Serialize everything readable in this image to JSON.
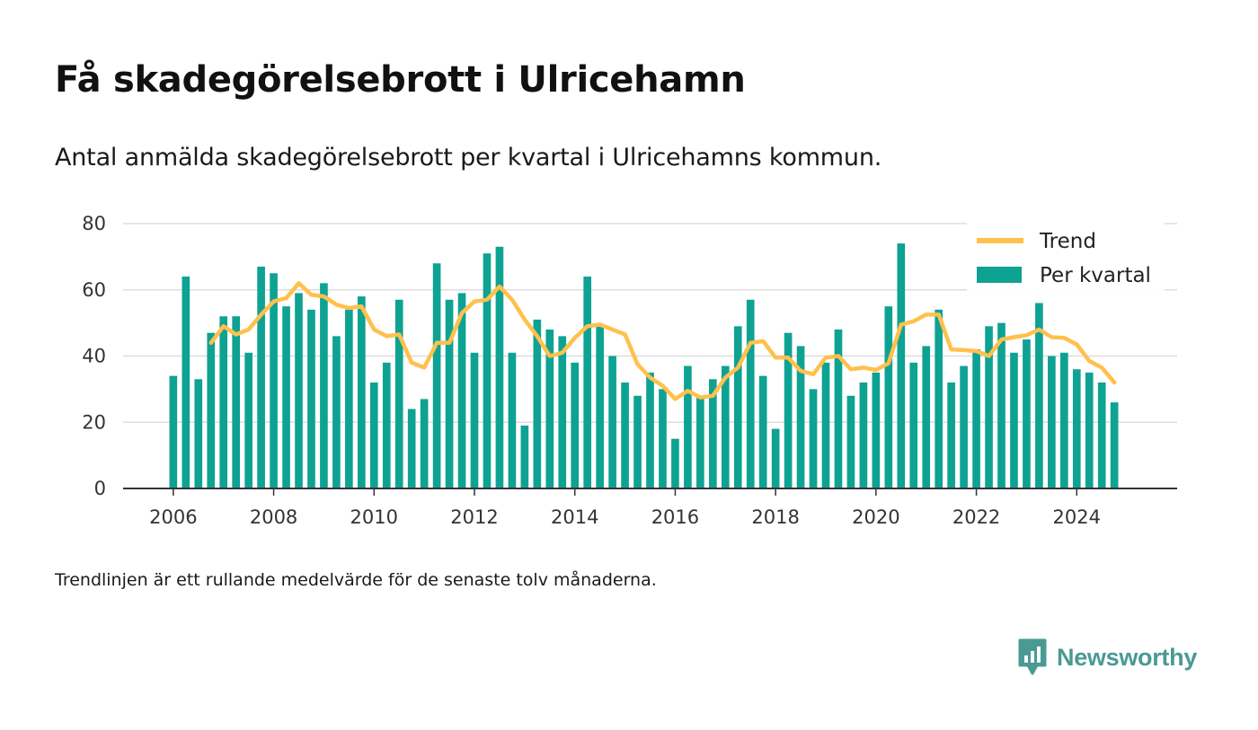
{
  "header": {
    "title": "Få skadegörelsebrott i Ulricehamn",
    "subtitle": "Antal anmälda skadegörelsebrott per kvartal i Ulricehamns kommun."
  },
  "footnote": "Trendlinjen är ett rullande medelvärde för de senaste tolv månaderna.",
  "brand": {
    "name": "Newsworthy",
    "icon": "newsworthy-logo-icon",
    "color": "#4a9a93"
  },
  "chart_data": {
    "type": "bar",
    "x_unit": "quarter",
    "first_period": "2006 Q1",
    "ylim": [
      0,
      80
    ],
    "yticks": [
      0,
      20,
      40,
      60,
      80
    ],
    "xlim": [
      2005,
      2026
    ],
    "xticks": [
      2006,
      2008,
      2010,
      2012,
      2014,
      2016,
      2018,
      2020,
      2022,
      2024
    ],
    "grid": true,
    "legend_position": "top-right",
    "colors": {
      "bars": "#0ea293",
      "trend": "#ffc04d",
      "grid": "#dddddd",
      "axis": "#333333"
    },
    "series": [
      {
        "name": "Per kvartal",
        "type": "bar",
        "values": [
          34,
          64,
          33,
          47,
          52,
          52,
          41,
          67,
          65,
          55,
          59,
          54,
          62,
          46,
          54,
          58,
          32,
          38,
          57,
          24,
          27,
          68,
          57,
          59,
          41,
          71,
          73,
          41,
          19,
          51,
          48,
          46,
          38,
          64,
          49,
          40,
          32,
          28,
          35,
          30,
          15,
          37,
          28,
          33,
          37,
          49,
          57,
          34,
          18,
          47,
          43,
          30,
          38,
          48,
          28,
          32,
          35,
          55,
          74,
          38,
          43,
          54,
          32,
          37,
          42,
          49,
          50,
          41,
          45,
          56,
          40,
          41,
          36,
          35,
          32,
          26
        ]
      },
      {
        "name": "Trend",
        "type": "line",
        "values": [
          null,
          null,
          null,
          44,
          49,
          46.5,
          48,
          52.5,
          56.5,
          57.5,
          62,
          58.5,
          58,
          55.5,
          54.5,
          55,
          48,
          46,
          46.5,
          38,
          36.5,
          44,
          44,
          53,
          56.5,
          57,
          61,
          57,
          51,
          46,
          40,
          41,
          45.5,
          49,
          49.5,
          48,
          46.5,
          37.5,
          33.5,
          31,
          27,
          29.5,
          27.5,
          28,
          33.5,
          36.5,
          44,
          44.5,
          39.5,
          39.5,
          35.5,
          34.5,
          39.5,
          40,
          36,
          36.5,
          35.8,
          37.8,
          49.5,
          50.5,
          52.5,
          52.5,
          42,
          41.8,
          41.5,
          40,
          45,
          45.7,
          46.3,
          48,
          45.7,
          45.5,
          43.5,
          38.5,
          36.5,
          32
        ]
      }
    ]
  }
}
